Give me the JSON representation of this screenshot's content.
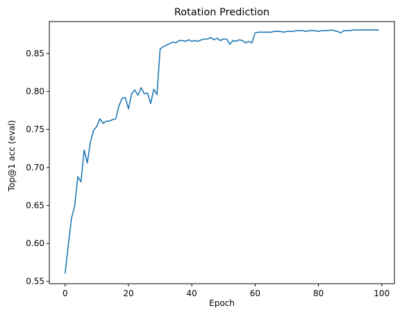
{
  "chart_data": {
    "type": "line",
    "title": "Rotation Prediction",
    "xlabel": "Epoch",
    "ylabel": "Top@1 acc (eval)",
    "xlim": [
      -5,
      104
    ],
    "ylim": [
      0.547,
      0.892
    ],
    "xticks": [
      0,
      20,
      40,
      60,
      80,
      100
    ],
    "yticks": [
      0.55,
      0.6,
      0.65,
      0.7,
      0.75,
      0.8,
      0.85
    ],
    "xtick_labels": [
      "0",
      "20",
      "40",
      "60",
      "80",
      "100"
    ],
    "ytick_labels": [
      "0.55",
      "0.60",
      "0.65",
      "0.70",
      "0.75",
      "0.80",
      "0.85"
    ],
    "grid": false,
    "line_color": "#1f77b4",
    "x": [
      0,
      1,
      2,
      3,
      4,
      5,
      6,
      7,
      8,
      9,
      10,
      11,
      12,
      13,
      14,
      15,
      16,
      17,
      18,
      19,
      20,
      21,
      22,
      23,
      24,
      25,
      26,
      27,
      28,
      29,
      30,
      31,
      32,
      33,
      34,
      35,
      36,
      37,
      38,
      39,
      40,
      41,
      42,
      43,
      44,
      45,
      46,
      47,
      48,
      49,
      50,
      51,
      52,
      53,
      54,
      55,
      56,
      57,
      58,
      59,
      60,
      61,
      62,
      63,
      64,
      65,
      66,
      67,
      68,
      69,
      70,
      71,
      72,
      73,
      74,
      75,
      76,
      77,
      78,
      79,
      80,
      81,
      82,
      83,
      84,
      85,
      86,
      87,
      88,
      89,
      90,
      91,
      92,
      93,
      94,
      95,
      96,
      97,
      98,
      99
    ],
    "y": [
      0.561,
      0.598,
      0.633,
      0.649,
      0.688,
      0.681,
      0.723,
      0.706,
      0.734,
      0.749,
      0.754,
      0.764,
      0.758,
      0.761,
      0.761,
      0.763,
      0.764,
      0.781,
      0.791,
      0.792,
      0.777,
      0.797,
      0.802,
      0.795,
      0.805,
      0.797,
      0.798,
      0.784,
      0.803,
      0.796,
      0.856,
      0.859,
      0.861,
      0.863,
      0.865,
      0.864,
      0.867,
      0.867,
      0.866,
      0.868,
      0.866,
      0.867,
      0.866,
      0.868,
      0.869,
      0.869,
      0.871,
      0.868,
      0.87,
      0.867,
      0.869,
      0.869,
      0.862,
      0.867,
      0.866,
      0.868,
      0.867,
      0.864,
      0.866,
      0.864,
      0.877,
      0.878,
      0.878,
      0.878,
      0.878,
      0.878,
      0.879,
      0.879,
      0.879,
      0.878,
      0.879,
      0.879,
      0.879,
      0.88,
      0.88,
      0.88,
      0.879,
      0.88,
      0.88,
      0.88,
      0.879,
      0.88,
      0.88,
      0.88,
      0.881,
      0.88,
      0.879,
      0.877,
      0.88,
      0.88,
      0.88,
      0.881,
      0.881,
      0.881,
      0.881,
      0.881,
      0.881,
      0.881,
      0.881,
      0.881
    ]
  }
}
